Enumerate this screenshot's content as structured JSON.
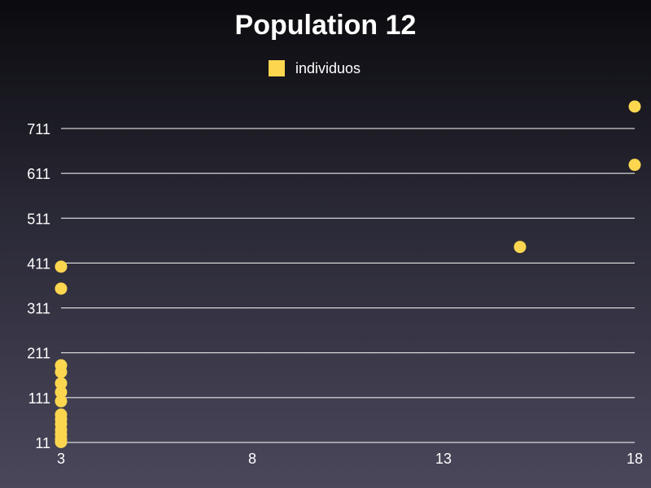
{
  "chart_data": {
    "type": "scatter",
    "title": "Population 12",
    "xlabel": "",
    "ylabel": "",
    "legend": {
      "placement": "top-center"
    },
    "grid": {
      "horizontal": true,
      "vertical": false
    },
    "xlim": [
      3,
      18
    ],
    "ylim": [
      11,
      711
    ],
    "xticks": [
      3,
      8,
      13,
      18
    ],
    "yticks": [
      11,
      111,
      211,
      311,
      411,
      511,
      611,
      711
    ],
    "series": [
      {
        "name": "individuos",
        "color": "#fdd64f",
        "points": [
          [
            3,
            12
          ],
          [
            3,
            19
          ],
          [
            3,
            29
          ],
          [
            3,
            39
          ],
          [
            3,
            52
          ],
          [
            3,
            63
          ],
          [
            3,
            73
          ],
          [
            3,
            103
          ],
          [
            3,
            123
          ],
          [
            3,
            143
          ],
          [
            3,
            168
          ],
          [
            3,
            183
          ],
          [
            3,
            354
          ],
          [
            3,
            403
          ],
          [
            15,
            447
          ],
          [
            18,
            630
          ],
          [
            18,
            760
          ]
        ]
      }
    ]
  }
}
